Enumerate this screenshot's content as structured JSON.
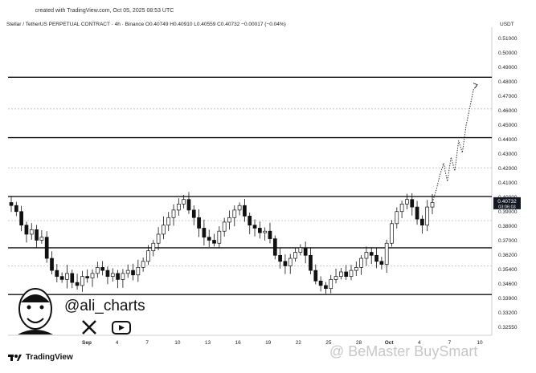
{
  "header": {
    "created_note": "created with TradingView.com, Oct 05, 2025 08:53 UTC",
    "symbol_line": "Stellar / TetherUS PERPETUAL CONTRACT · 4h · Binance  O0.40749  H0.40910  L0.40559  C0.40732  −0.00017 (−0.04%)",
    "unit": "USDT"
  },
  "author": {
    "handle": "@ali_charts",
    "x_icon": "x-logo-icon",
    "youtube_icon": "youtube-play-icon"
  },
  "footer": {
    "logo_text": "TradingView",
    "watermark": "@ BeMaster BuySmart"
  },
  "colors": {
    "candle": "#111111",
    "grid": "#bdbdbd",
    "line": "#111111",
    "bg": "#ffffff",
    "price_tag": "#131722"
  },
  "chart_data": {
    "type": "candlestick",
    "title": "",
    "ylim": [
      0.319,
      0.521
    ],
    "y_ticks": [
      "0.51000",
      "0.50000",
      "0.49000",
      "0.48000",
      "0.47000",
      "0.46000",
      "0.45000",
      "0.44000",
      "0.43000",
      "0.42000",
      "0.41000",
      "0.40000",
      "0.39000",
      "0.38000",
      "0.37000",
      "0.36200",
      "0.35400",
      "0.34600",
      "0.33900",
      "0.33200",
      "0.32550"
    ],
    "x_ticks": [
      "Sep",
      "4",
      "7",
      "10",
      "13",
      "16",
      "19",
      "22",
      "25",
      "28",
      "Oct",
      "4",
      "7",
      "10"
    ],
    "current_price": "0.40732",
    "countdown": "03:06:03",
    "support_resistance_lines": [
      0.49,
      0.45,
      0.411,
      0.377,
      0.346
    ],
    "dotted_levels": [
      0.469,
      0.43,
      0.395,
      0.365
    ],
    "close_path": [
      0.405,
      0.401,
      0.392,
      0.386,
      0.389,
      0.382,
      0.384,
      0.37,
      0.362,
      0.358,
      0.356,
      0.36,
      0.354,
      0.352,
      0.358,
      0.357,
      0.36,
      0.364,
      0.362,
      0.358,
      0.36,
      0.356,
      0.36,
      0.362,
      0.359,
      0.364,
      0.368,
      0.375,
      0.38,
      0.386,
      0.392,
      0.397,
      0.402,
      0.406,
      0.409,
      0.402,
      0.397,
      0.39,
      0.384,
      0.382,
      0.38,
      0.388,
      0.394,
      0.397,
      0.402,
      0.405,
      0.398,
      0.392,
      0.39,
      0.387,
      0.388,
      0.383,
      0.372,
      0.368,
      0.365,
      0.37,
      0.374,
      0.377,
      0.372,
      0.362,
      0.355,
      0.352,
      0.35,
      0.356,
      0.358,
      0.361,
      0.358,
      0.362,
      0.364,
      0.37,
      0.374,
      0.372,
      0.368,
      0.366,
      0.38,
      0.393,
      0.401,
      0.406,
      0.409,
      0.404,
      0.396,
      0.392,
      0.404,
      0.407
    ],
    "projection_path": [
      0.407,
      0.415,
      0.425,
      0.433,
      0.421,
      0.437,
      0.428,
      0.448,
      0.44,
      0.458,
      0.47,
      0.482,
      0.485
    ]
  }
}
